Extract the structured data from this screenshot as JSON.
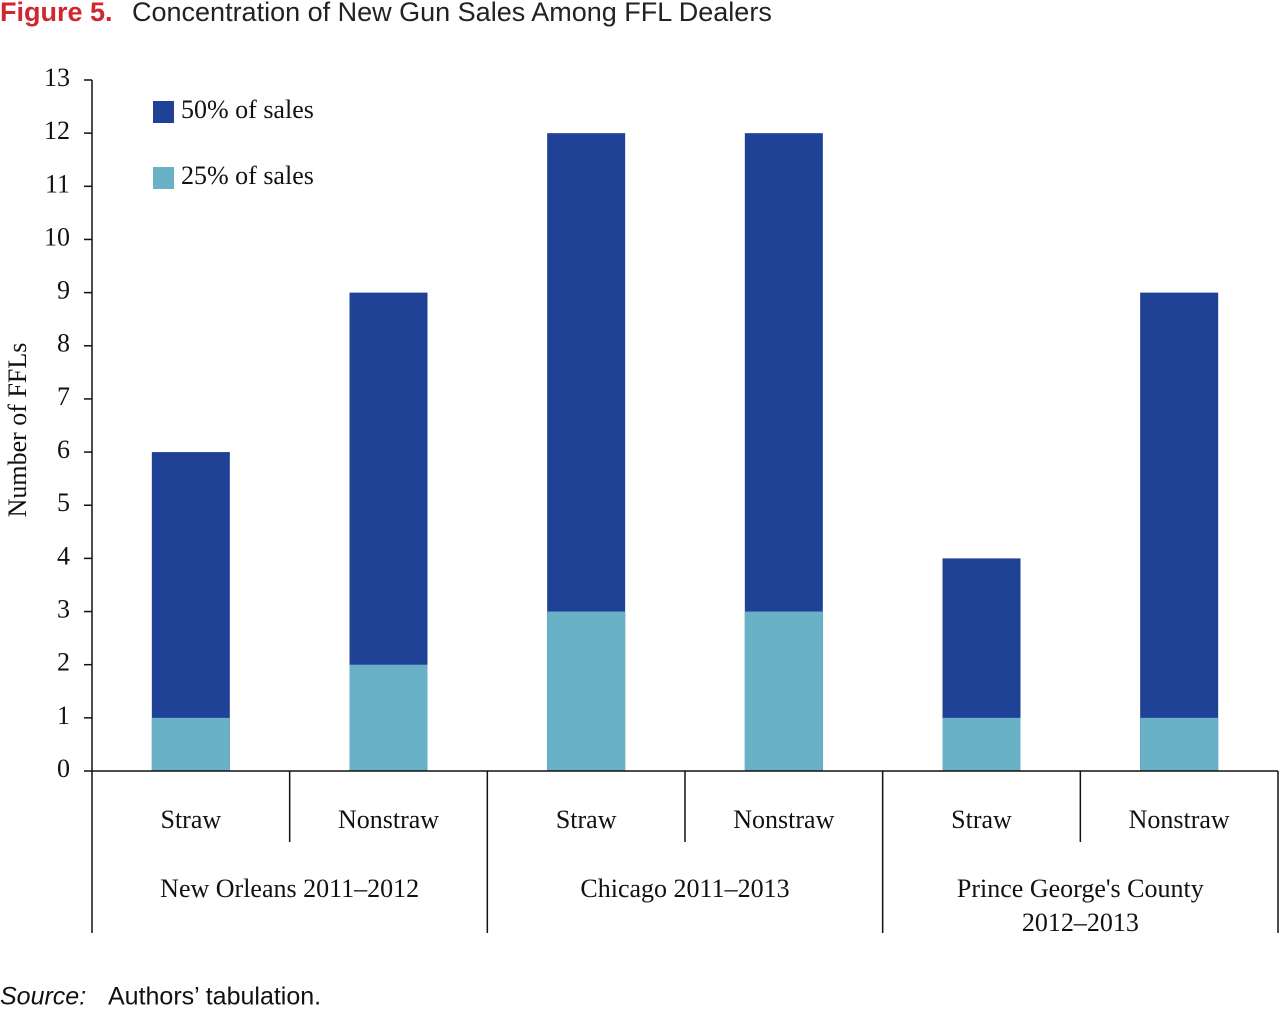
{
  "chart_data": {
    "type": "bar",
    "figure_label": "Figure 5.",
    "title": "Concentration of New Gun Sales Among FFL Dealers",
    "ylabel": "Number of FFLs",
    "categories": [
      "Straw",
      "Nonstraw",
      "Straw",
      "Nonstraw",
      "Straw",
      "Nonstraw"
    ],
    "groups": [
      [
        "New Orleans 2011–2012"
      ],
      [
        "Chicago 2011–2013"
      ],
      [
        "Prince George's County",
        "2012–2013"
      ]
    ],
    "series": [
      {
        "name": "50% of sales",
        "color": "#1f4196",
        "values": [
          6,
          9,
          12,
          12,
          4,
          9
        ]
      },
      {
        "name": "25% of sales",
        "color": "#69b1c7",
        "values": [
          1,
          2,
          3,
          3,
          1,
          1
        ]
      }
    ],
    "ylim": [
      0,
      13
    ],
    "yticks": [
      0,
      1,
      2,
      3,
      4,
      5,
      6,
      7,
      8,
      9,
      10,
      11,
      12,
      13
    ],
    "legend": "upper left",
    "source_label": "Source:",
    "source": "Authors’ tabulation."
  }
}
